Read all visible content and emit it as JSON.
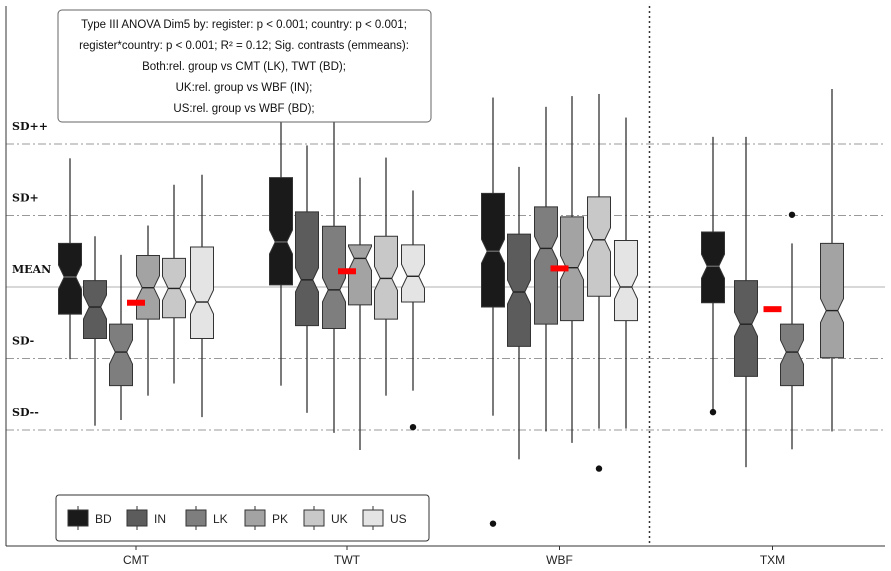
{
  "chart_data": {
    "type": "boxplot",
    "title": "",
    "xlabel": "",
    "ylabel": "",
    "categories": [
      "CMT",
      "TWT",
      "WBF",
      "TXM"
    ],
    "y_ticks": [
      {
        "label": "SD++",
        "value": 2
      },
      {
        "label": "SD+",
        "value": 1
      },
      {
        "label": "MEAN",
        "value": 0
      },
      {
        "label": "SD-",
        "value": -1
      },
      {
        "label": "SD--",
        "value": -2
      }
    ],
    "ylim": [
      -3.6,
      3.3
    ],
    "legend": {
      "position": "bottom-left",
      "items": [
        {
          "name": "BD",
          "color": "#1a1a1a"
        },
        {
          "name": "IN",
          "color": "#5c5c5c"
        },
        {
          "name": "LK",
          "color": "#7e7e7e"
        },
        {
          "name": "PK",
          "color": "#a3a3a3"
        },
        {
          "name": "UK",
          "color": "#c8c8c8"
        },
        {
          "name": "US",
          "color": "#e4e4e4"
        }
      ]
    },
    "series": [
      {
        "name": "BD",
        "values": [
          {
            "category": "CMT",
            "low": -1.01,
            "q1": -0.38,
            "median": 0.14,
            "q3": 0.61,
            "high": 1.8,
            "outliers": []
          },
          {
            "category": "TWT",
            "low": -1.38,
            "q1": 0.03,
            "median": 0.63,
            "q3": 1.53,
            "high": 2.45,
            "outliers": []
          },
          {
            "category": "WBF",
            "low": -1.8,
            "q1": -0.28,
            "median": 0.5,
            "q3": 1.31,
            "high": 2.65,
            "outliers": [
              -3.31
            ]
          },
          {
            "category": "TXM",
            "low": -1.71,
            "q1": -0.22,
            "median": 0.29,
            "q3": 0.77,
            "high": 2.1,
            "outliers": [
              -1.75
            ]
          }
        ]
      },
      {
        "name": "IN",
        "values": [
          {
            "category": "CMT",
            "low": -1.94,
            "q1": -0.72,
            "median": -0.28,
            "q3": 0.09,
            "high": 0.71,
            "outliers": []
          },
          {
            "category": "TWT",
            "low": -1.76,
            "q1": -0.54,
            "median": 0.1,
            "q3": 1.05,
            "high": 1.98,
            "outliers": []
          },
          {
            "category": "WBF",
            "low": -2.41,
            "q1": -0.83,
            "median": -0.07,
            "q3": 0.74,
            "high": 1.68,
            "outliers": []
          },
          {
            "category": "TXM",
            "low": -2.52,
            "q1": -1.25,
            "median": -0.52,
            "q3": 0.09,
            "high": 2.1,
            "outliers": []
          }
        ]
      },
      {
        "name": "LK",
        "values": [
          {
            "category": "CMT",
            "low": -1.86,
            "q1": -1.38,
            "median": -0.91,
            "q3": -0.52,
            "high": 0.45,
            "outliers": []
          },
          {
            "category": "TWT",
            "low": -2.04,
            "q1": -0.58,
            "median": -0.04,
            "q3": 0.85,
            "high": 2.5,
            "outliers": []
          },
          {
            "category": "WBF",
            "low": -2.02,
            "q1": -0.52,
            "median": 0.54,
            "q3": 1.12,
            "high": 2.52,
            "outliers": []
          },
          {
            "category": "TXM",
            "low": -2.27,
            "q1": -1.38,
            "median": -0.91,
            "q3": -0.52,
            "high": 0.61,
            "outliers": [
              1.01
            ]
          }
        ]
      },
      {
        "name": "PK",
        "values": [
          {
            "category": "CMT",
            "low": -1.52,
            "q1": -0.45,
            "median": -0.01,
            "q3": 0.44,
            "high": 0.86,
            "outliers": []
          },
          {
            "category": "TWT",
            "low": -2.28,
            "q1": -0.25,
            "median": 0.4,
            "q3": 0.59,
            "high": 1.53,
            "outliers": []
          },
          {
            "category": "WBF",
            "low": -2.18,
            "q1": -0.47,
            "median": 0.27,
            "q3": 0.98,
            "high": 2.67,
            "outliers": []
          },
          {
            "category": "TXM",
            "low": -2.02,
            "q1": -0.99,
            "median": -0.33,
            "q3": 0.61,
            "high": 2.77,
            "outliers": []
          }
        ]
      },
      {
        "name": "UK",
        "values": [
          {
            "category": "CMT",
            "low": -1.35,
            "q1": -0.43,
            "median": -0.02,
            "q3": 0.4,
            "high": 1.43,
            "outliers": []
          },
          {
            "category": "TWT",
            "low": -1.52,
            "q1": -0.45,
            "median": 0.12,
            "q3": 0.71,
            "high": 1.81,
            "outliers": []
          },
          {
            "category": "WBF",
            "low": -1.98,
            "q1": -0.13,
            "median": 0.66,
            "q3": 1.26,
            "high": 2.7,
            "outliers": [
              -2.54
            ]
          }
        ]
      },
      {
        "name": "US",
        "values": [
          {
            "category": "CMT",
            "low": -1.82,
            "q1": -0.72,
            "median": -0.21,
            "q3": 0.56,
            "high": 1.57,
            "outliers": []
          },
          {
            "category": "TWT",
            "low": -1.45,
            "q1": -0.21,
            "median": 0.15,
            "q3": 0.59,
            "high": 1.35,
            "outliers": [
              -1.96
            ]
          },
          {
            "category": "WBF",
            "low": -1.98,
            "q1": -0.47,
            "median": 0.0,
            "q3": 0.65,
            "high": 2.37,
            "outliers": []
          }
        ]
      }
    ],
    "group_means": [
      {
        "category": "CMT",
        "value": -0.22
      },
      {
        "category": "TWT",
        "value": 0.22
      },
      {
        "category": "WBF",
        "value": 0.26
      },
      {
        "category": "TXM",
        "value": -0.31
      }
    ],
    "mean_marker_color": "#ff0000",
    "annotation_lines": [
      "Type III ANOVA Dim5 by: register: p < 0.001; country: p < 0.001;",
      "register*country: p < 0.001; R² = 0.12; Sig. contrasts (emmeans):",
      "Both:rel. group vs CMT (LK), TWT (BD);",
      "UK:rel. group vs WBF (IN);",
      "US:rel. group vs WBF (BD);"
    ],
    "separator_after_category": "WBF"
  }
}
